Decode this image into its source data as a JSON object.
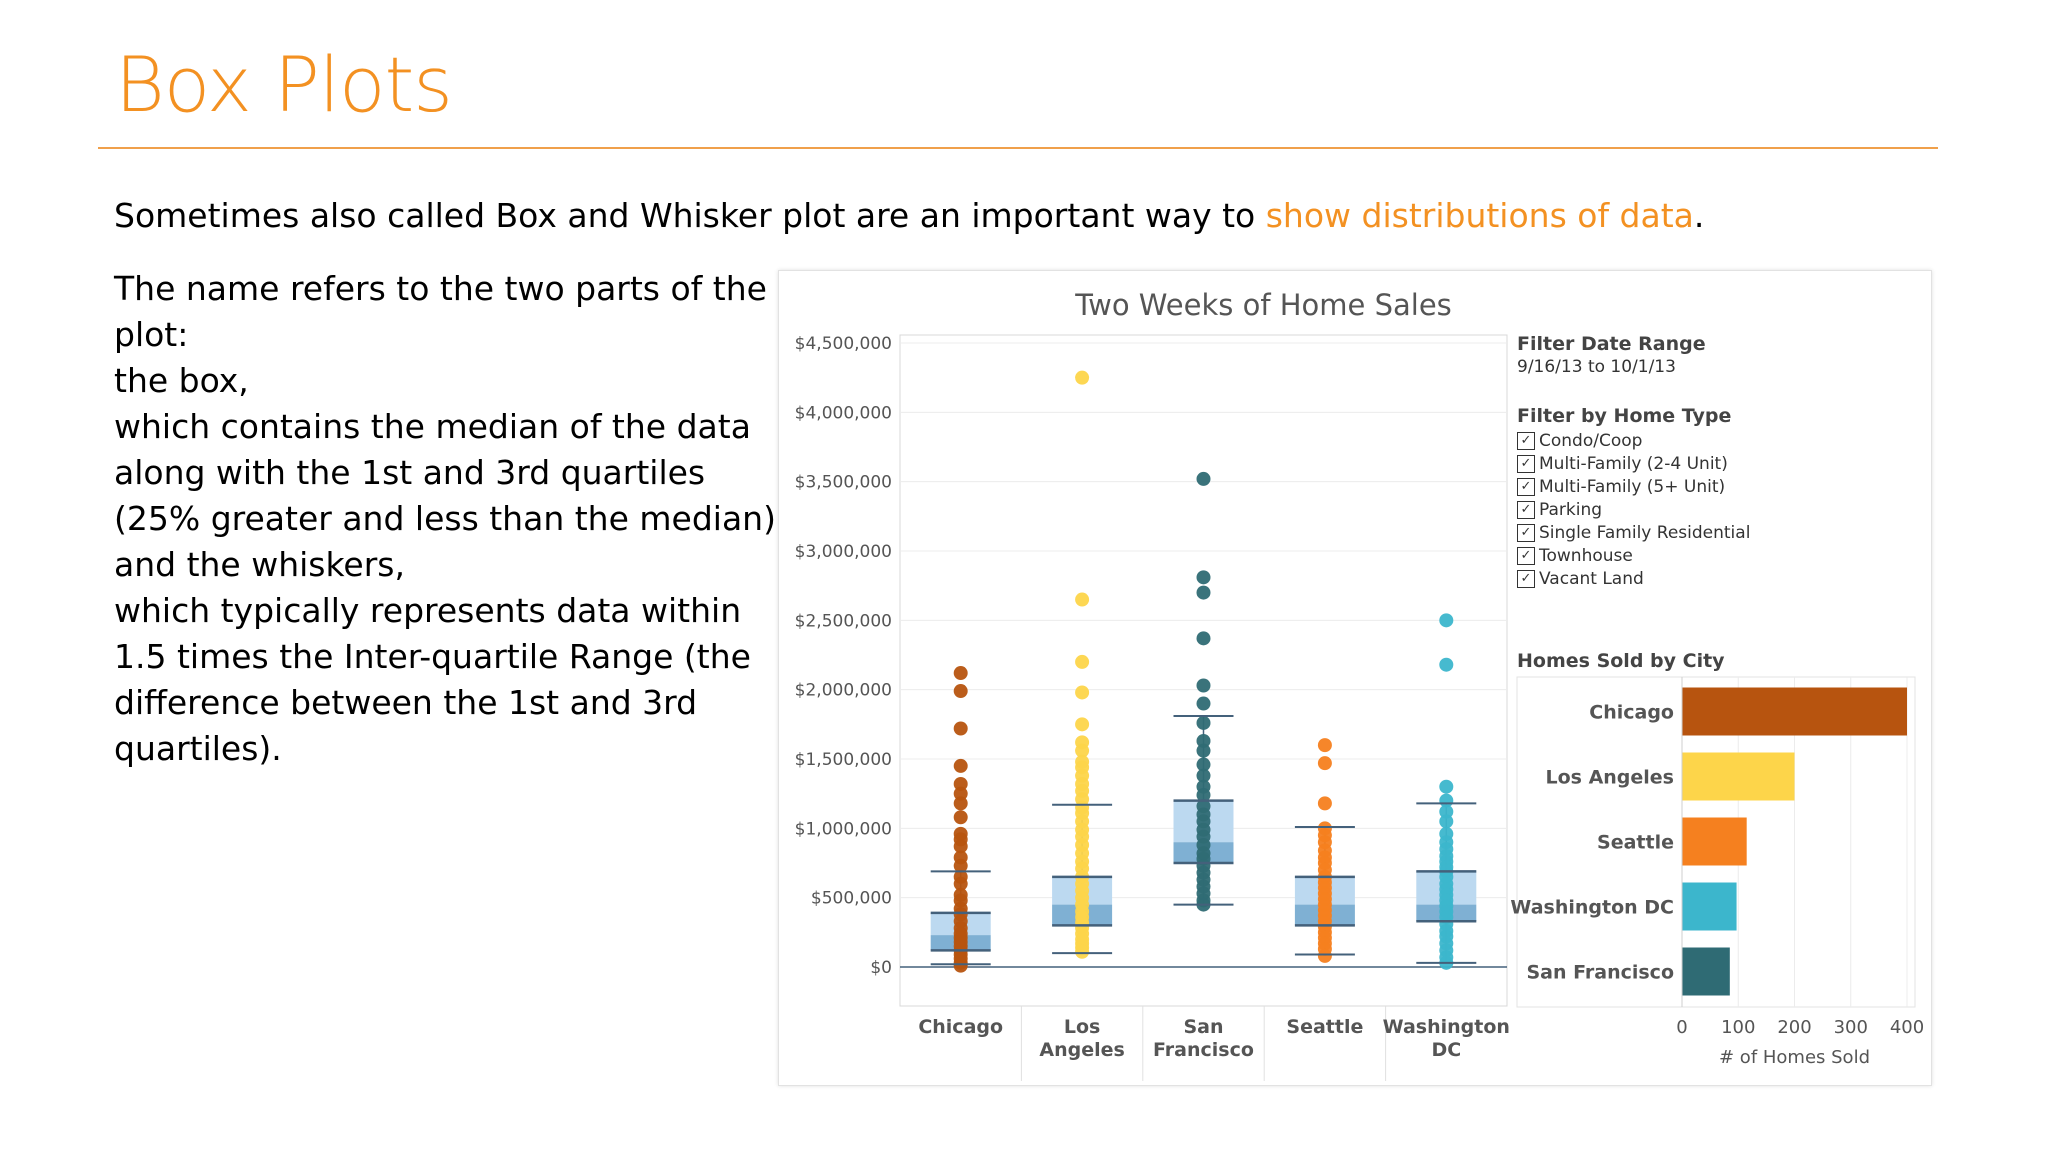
{
  "slide": {
    "title": "Box Plots",
    "intro_prefix": "Sometimes also called Box and Whisker plot are an important way to ",
    "intro_highlight": "show distributions of data",
    "intro_suffix": ".",
    "body_lines": [
      "The name refers to the two parts of the",
      "plot:",
      "the box,",
      "which contains the median of the data",
      "along with the 1st and 3rd quartiles",
      "(25% greater and less than the median),",
      "and the whiskers,",
      "which typically represents data within",
      "1.5 times the Inter-quartile Range (the",
      "difference between the 1st and 3rd",
      "quartiles)."
    ]
  },
  "filters": {
    "date_title": "Filter Date Range",
    "date_range": "9/16/13 to 10/1/13",
    "type_title": "Filter by Home Type",
    "types": [
      {
        "label": "Condo/Coop",
        "checked": true
      },
      {
        "label": "Multi-Family (2-4 Unit)",
        "checked": true
      },
      {
        "label": "Multi-Family (5+ Unit)",
        "checked": true
      },
      {
        "label": "Parking",
        "checked": true
      },
      {
        "label": "Single Family Residential",
        "checked": true
      },
      {
        "label": "Townhouse",
        "checked": true
      },
      {
        "label": "Vacant Land",
        "checked": true
      }
    ],
    "checkmark": "✓"
  },
  "chart_data": [
    {
      "type": "box",
      "title": "Two Weeks of Home Sales",
      "categories": [
        "Chicago",
        "Los Angeles",
        "San Francisco",
        "Seattle",
        "Washington DC"
      ],
      "category_label_lines": [
        [
          "Chicago"
        ],
        [
          "Los",
          "Angeles"
        ],
        [
          "San",
          "Francisco"
        ],
        [
          "Seattle"
        ],
        [
          "Washington",
          "DC"
        ]
      ],
      "ylim": [
        0,
        4500000
      ],
      "yticks": [
        0,
        500000,
        1000000,
        1500000,
        2000000,
        2500000,
        3000000,
        3500000,
        4000000,
        4500000
      ],
      "ytick_labels": [
        "$0",
        "$500,000",
        "$1,000,000",
        "$1,500,000",
        "$2,000,000",
        "$2,500,000",
        "$3,000,000",
        "$3,500,000",
        "$4,000,000",
        "$4,500,000"
      ],
      "colors": [
        "#b7540f",
        "#fdd54a",
        "#2f6b74",
        "#f5801f",
        "#3cb6cc"
      ],
      "box_fill_light": "#bcd9f0",
      "box_fill_dark": "#7fb0d3",
      "box_line": "#44617b",
      "series": [
        {
          "name": "Chicago",
          "whisker_low": 20000,
          "q1": 120000,
          "median": 230000,
          "q3": 390000,
          "whisker_high": 690000,
          "points": [
            2120000,
            1990000,
            1720000,
            1450000,
            1320000,
            1250000,
            1180000,
            1080000,
            960000,
            920000,
            870000,
            790000,
            730000,
            650000,
            600000,
            520000,
            480000,
            420000,
            380000,
            330000,
            280000,
            240000,
            210000,
            180000,
            150000,
            120000,
            90000,
            60000,
            30000,
            10000
          ]
        },
        {
          "name": "Los Angeles",
          "whisker_low": 100000,
          "q1": 300000,
          "median": 450000,
          "q3": 650000,
          "whisker_high": 1170000,
          "points": [
            4250000,
            2650000,
            2200000,
            1980000,
            1750000,
            1620000,
            1560000,
            1480000,
            1440000,
            1380000,
            1320000,
            1270000,
            1210000,
            1150000,
            1110000,
            1050000,
            990000,
            940000,
            880000,
            820000,
            760000,
            710000,
            650000,
            600000,
            550000,
            500000,
            450000,
            400000,
            360000,
            320000,
            280000,
            240000,
            200000,
            170000,
            140000,
            110000
          ]
        },
        {
          "name": "San Francisco",
          "whisker_low": 450000,
          "q1": 750000,
          "median": 900000,
          "q3": 1200000,
          "whisker_high": 1810000,
          "points": [
            3520000,
            2810000,
            2700000,
            2370000,
            2030000,
            1900000,
            1760000,
            1630000,
            1560000,
            1460000,
            1380000,
            1300000,
            1240000,
            1160000,
            1100000,
            1050000,
            990000,
            940000,
            880000,
            820000,
            780000,
            730000,
            680000,
            630000,
            580000,
            530000,
            480000,
            450000
          ]
        },
        {
          "name": "Seattle",
          "whisker_low": 90000,
          "q1": 300000,
          "median": 450000,
          "q3": 650000,
          "whisker_high": 1010000,
          "points": [
            1600000,
            1470000,
            1180000,
            1000000,
            950000,
            900000,
            840000,
            790000,
            750000,
            700000,
            650000,
            610000,
            570000,
            530000,
            490000,
            450000,
            410000,
            370000,
            330000,
            290000,
            250000,
            210000,
            170000,
            130000,
            80000
          ]
        },
        {
          "name": "Washington DC",
          "whisker_low": 30000,
          "q1": 330000,
          "median": 450000,
          "q3": 690000,
          "whisker_high": 1180000,
          "points": [
            2500000,
            2180000,
            1300000,
            1200000,
            1120000,
            1050000,
            960000,
            900000,
            850000,
            800000,
            760000,
            720000,
            690000,
            650000,
            600000,
            560000,
            520000,
            480000,
            440000,
            400000,
            360000,
            310000,
            260000,
            220000,
            170000,
            120000,
            70000,
            30000
          ]
        }
      ]
    },
    {
      "type": "bar",
      "orientation": "horizontal",
      "title": "Homes Sold by City",
      "categories": [
        "Chicago",
        "Los Angeles",
        "Seattle",
        "Washington DC",
        "San Francisco"
      ],
      "values": [
        400,
        200,
        115,
        97,
        85
      ],
      "colors": [
        "#b7540f",
        "#fdd54a",
        "#f5801f",
        "#3cb6cc",
        "#2f6b74"
      ],
      "xlim": [
        0,
        400
      ],
      "xticks": [
        0,
        100,
        200,
        300,
        400
      ],
      "xlabel": "# of Homes Sold"
    }
  ]
}
